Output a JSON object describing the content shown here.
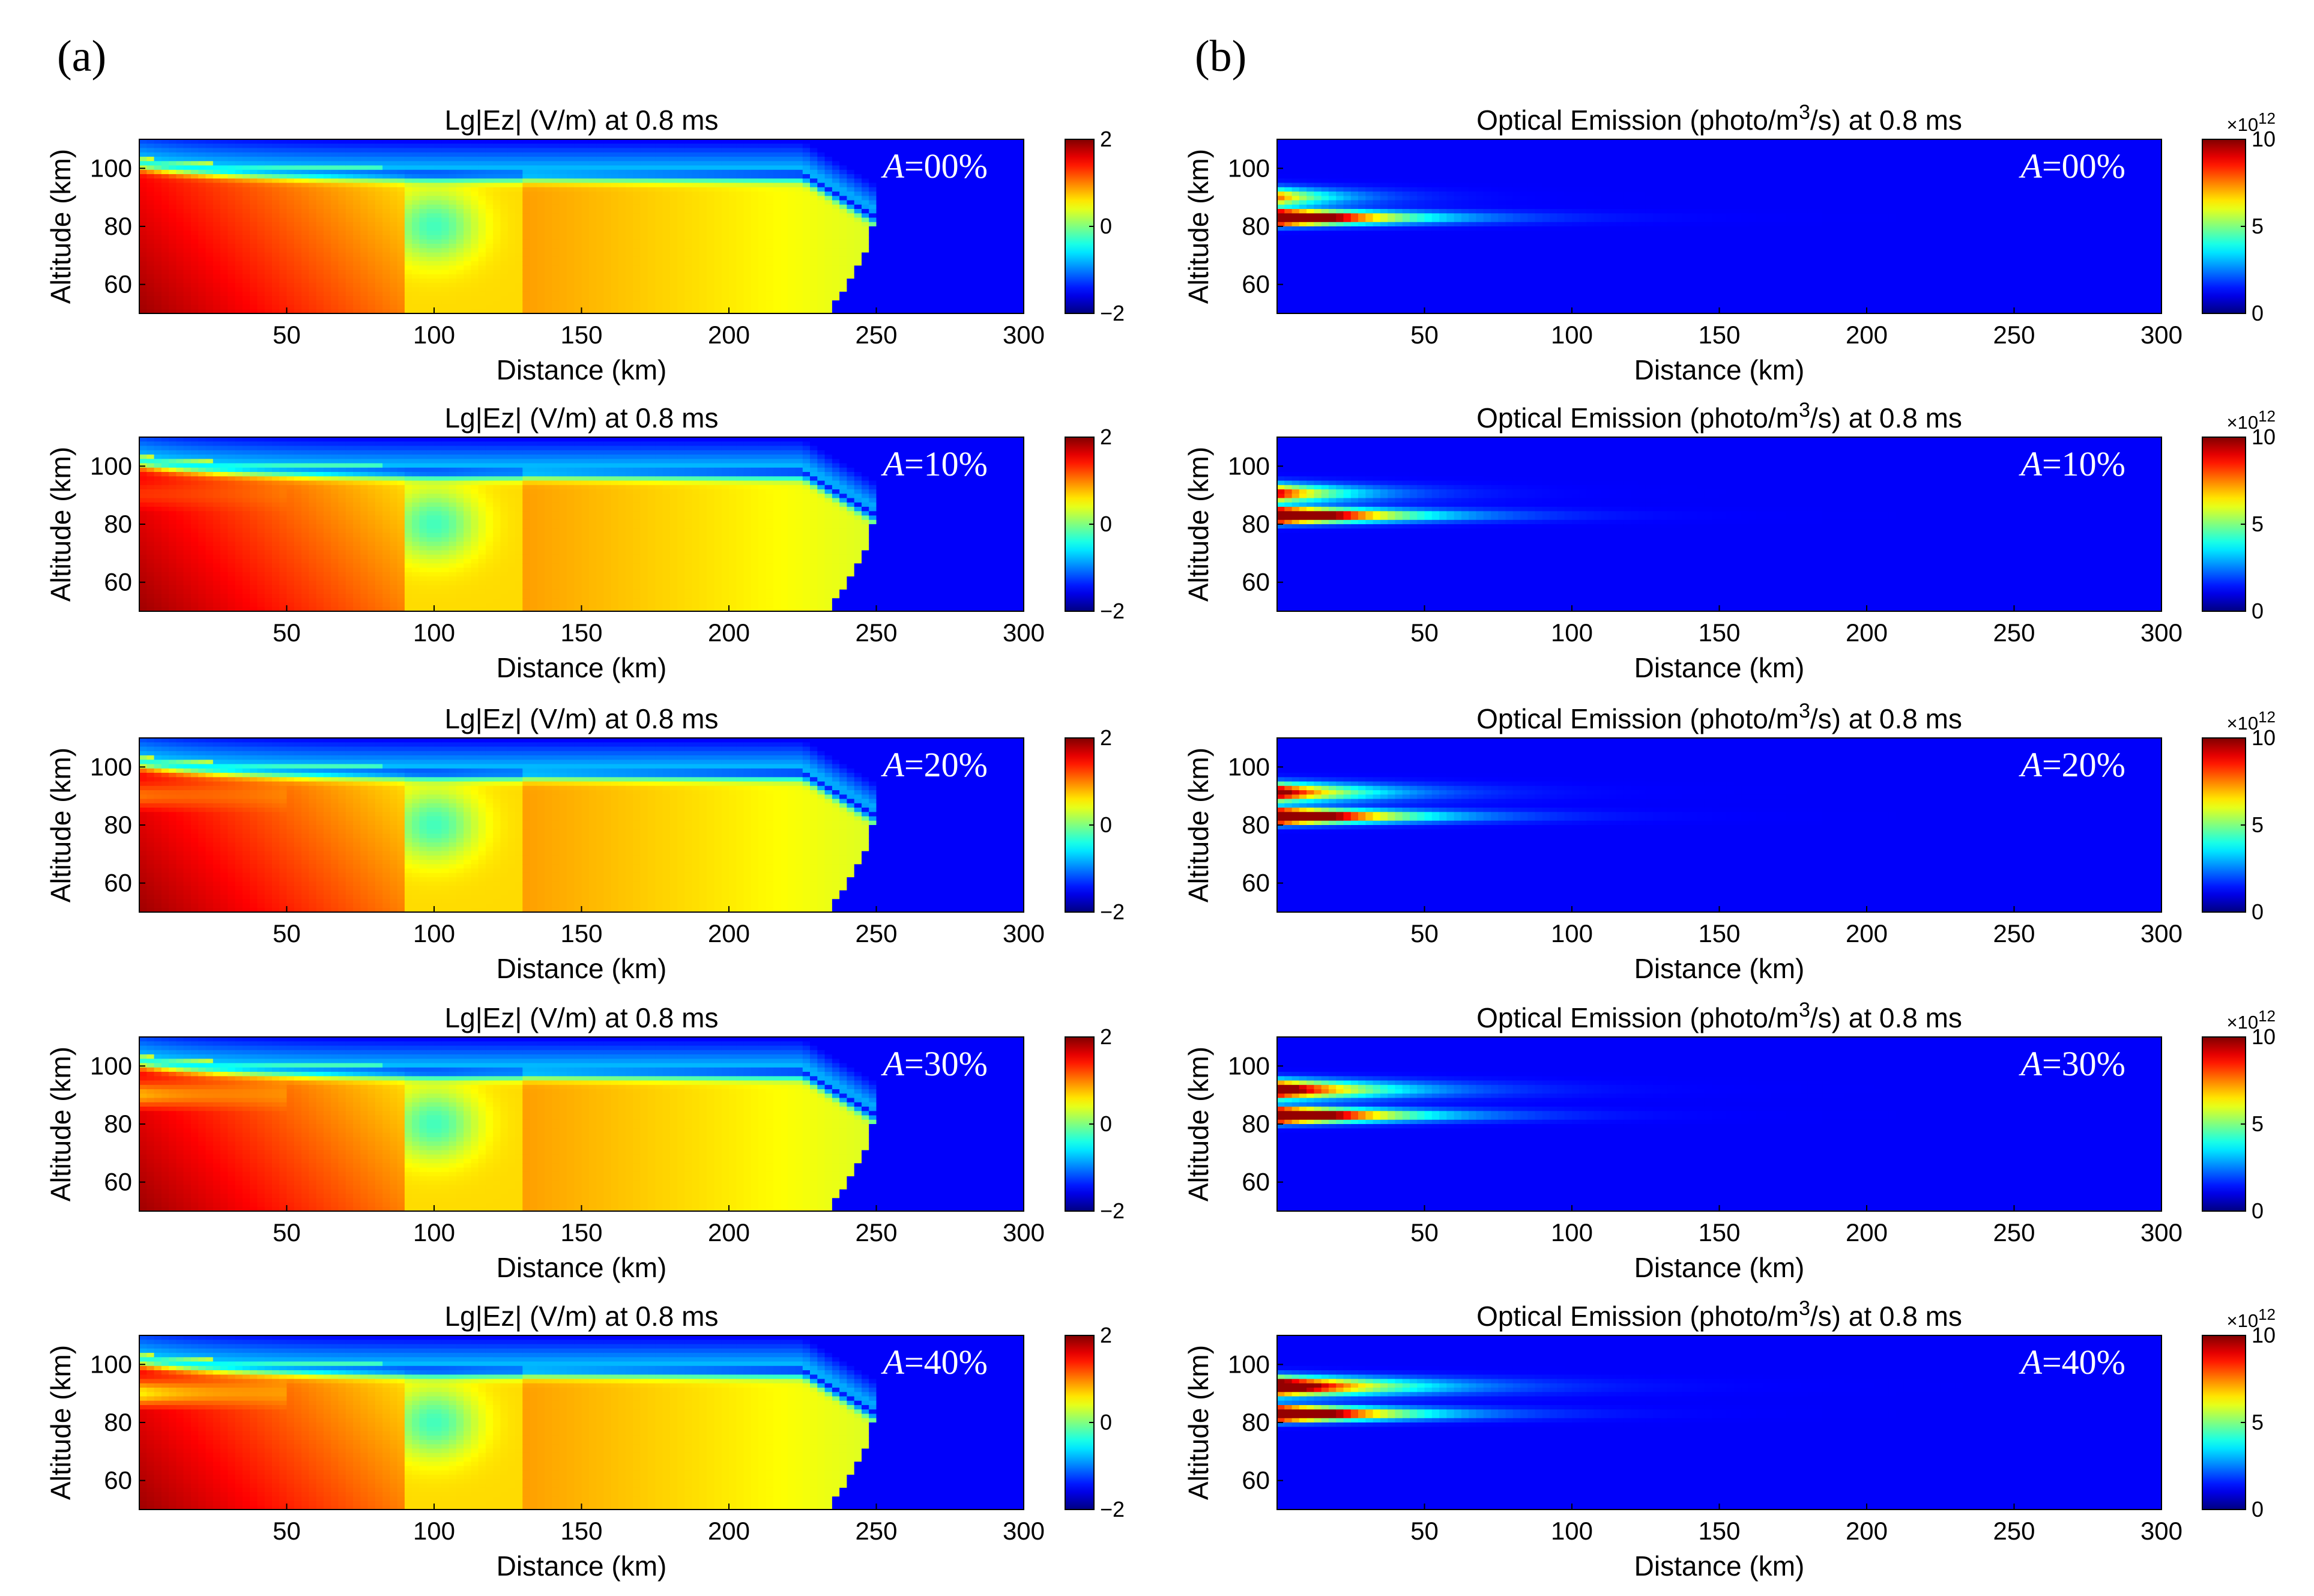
{
  "figure": {
    "panel_labels": [
      "(a)",
      "(b)"
    ],
    "colormap": "jet"
  },
  "chart_data": [
    {
      "id": "ez",
      "panel": "(a)",
      "type": "heatmap",
      "title": "Lg|Ez| (V/m) at 0.8 ms",
      "xlabel": "Distance (km)",
      "ylabel": "Altitude (km)",
      "xlim": [
        0,
        300
      ],
      "ylim": [
        50,
        110
      ],
      "xticks": [
        "50",
        "100",
        "150",
        "200",
        "250",
        "300"
      ],
      "yticks": [
        "60",
        "80",
        "100"
      ],
      "colorbar": {
        "min": -2,
        "max": 2,
        "ticks": [
          "2",
          "0",
          "−2"
        ],
        "exponent": ""
      },
      "rows": [
        {
          "a_prefix": "A",
          "a_value": "=00%",
          "asym": 0.0
        },
        {
          "a_prefix": "A",
          "a_value": "=10%",
          "asym": 0.1
        },
        {
          "a_prefix": "A",
          "a_value": "=20%",
          "asym": 0.2
        },
        {
          "a_prefix": "A",
          "a_value": "=30%",
          "asym": 0.3
        },
        {
          "a_prefix": "A",
          "a_value": "=40%",
          "asym": 0.4
        }
      ]
    },
    {
      "id": "optical",
      "panel": "(b)",
      "type": "heatmap",
      "title_pre": "Optical Emission (photo/m",
      "title_sup": "3",
      "title_post": "/s) at 0.8 ms",
      "xlabel": "Distance (km)",
      "ylabel": "Altitude (km)",
      "xlim": [
        0,
        300
      ],
      "ylim": [
        50,
        110
      ],
      "xticks": [
        "50",
        "100",
        "150",
        "200",
        "250",
        "300"
      ],
      "yticks": [
        "60",
        "80",
        "100"
      ],
      "colorbar": {
        "min": 0,
        "max": 10,
        "ticks": [
          "10",
          "5",
          "0"
        ],
        "exponent_base": "×10",
        "exponent_power": "12"
      },
      "rows": [
        {
          "a_prefix": "A",
          "a_value": "=00%",
          "asym": 0.0
        },
        {
          "a_prefix": "A",
          "a_value": "=10%",
          "asym": 0.1
        },
        {
          "a_prefix": "A",
          "a_value": "=20%",
          "asym": 0.2
        },
        {
          "a_prefix": "A",
          "a_value": "=30%",
          "asym": 0.3
        },
        {
          "a_prefix": "A",
          "a_value": "=40%",
          "asym": 0.4
        }
      ]
    }
  ]
}
